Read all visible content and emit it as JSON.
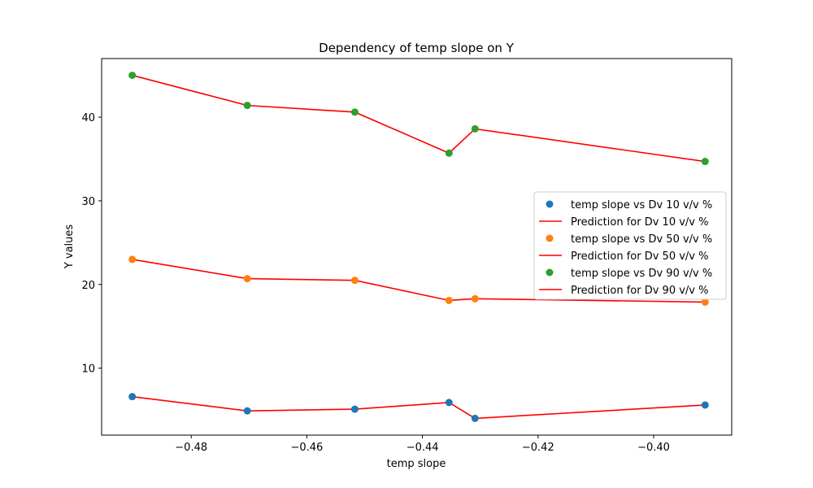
{
  "chart_data": {
    "type": "scatter",
    "title": "Dependency of temp slope on Y",
    "xlabel": "temp slope",
    "ylabel": "Y values",
    "xlim": [
      -0.4955,
      -0.3865
    ],
    "ylim": [
      2.0,
      47.0
    ],
    "xticks": [
      -0.48,
      -0.46,
      -0.44,
      -0.42,
      -0.4
    ],
    "xtick_labels": [
      "−0.48",
      "−0.46",
      "−0.44",
      "−0.42",
      "−0.40"
    ],
    "yticks": [
      10,
      20,
      30,
      40
    ],
    "ytick_labels": [
      "10",
      "20",
      "30",
      "40"
    ],
    "grid": false,
    "legend_position": "center-right",
    "x": [
      -0.4902,
      -0.4703,
      -0.4517,
      -0.4354,
      -0.4309,
      -0.3911
    ],
    "series": [
      {
        "name": "temp slope vs Dv 10 v/v %",
        "prediction_name": "Prediction for Dv 10 v/v %",
        "color": "#1f77b4",
        "values": [
          6.6,
          4.9,
          5.1,
          5.9,
          4.0,
          5.6
        ]
      },
      {
        "name": "temp slope vs Dv 50 v/v %",
        "prediction_name": "Prediction for Dv 50 v/v %",
        "color": "#ff7f0e",
        "values": [
          23.0,
          20.7,
          20.5,
          18.1,
          18.3,
          17.9
        ]
      },
      {
        "name": "temp slope vs Dv 90 v/v %",
        "prediction_name": "Prediction for Dv 90 v/v %",
        "color": "#2ca02c",
        "values": [
          45.0,
          41.4,
          40.6,
          35.7,
          38.6,
          34.7
        ]
      }
    ],
    "prediction_color": "#ff0000"
  }
}
